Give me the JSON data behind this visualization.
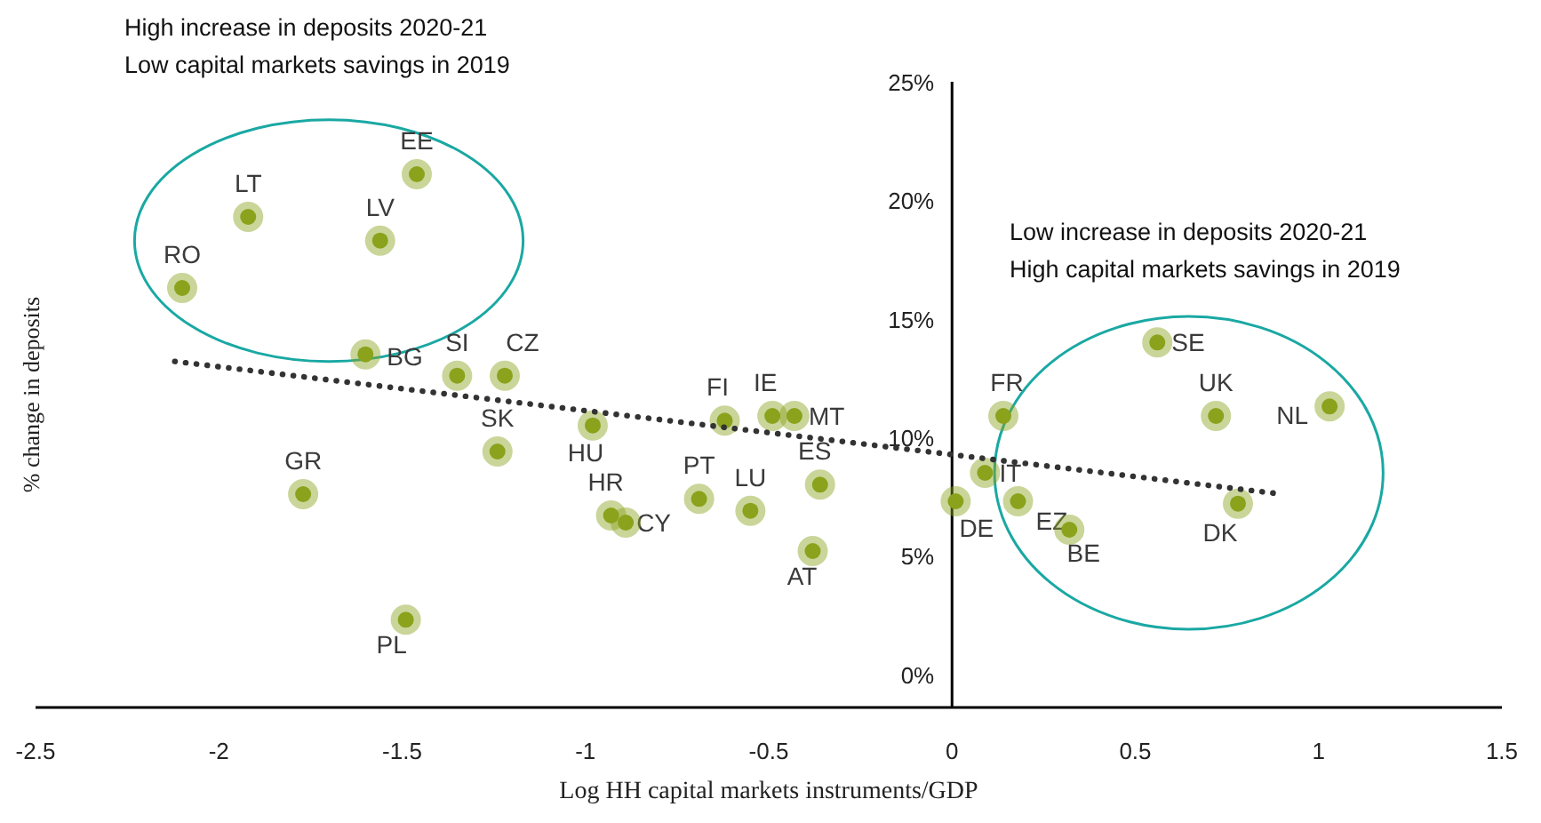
{
  "chart_data": {
    "type": "scatter",
    "xlabel": "Log HH capital markets instruments/GDP",
    "ylabel": "% change in deposits",
    "xlim": [
      -2.5,
      1.5
    ],
    "xticks": [
      -2.5,
      -2,
      -1.5,
      -1,
      -0.5,
      0,
      0.5,
      1,
      1.5
    ],
    "ylim": [
      -1.4,
      25
    ],
    "yticks": [
      {
        "value": 0,
        "label": "0%"
      },
      {
        "value": 5,
        "label": "5%"
      },
      {
        "value": 10,
        "label": "10%"
      },
      {
        "value": 15,
        "label": "15%"
      },
      {
        "value": 20,
        "label": "20%"
      },
      {
        "value": 25,
        "label": "25%"
      }
    ],
    "grid": false,
    "legend": false,
    "marker": "circle",
    "series": [
      {
        "color": "#8aa21c",
        "x": [
          -1.46,
          -1.92,
          -1.56,
          -2.1,
          -1.6,
          -1.35,
          -1.22,
          -1.24,
          -1.77,
          -1.49,
          -0.98,
          -0.62,
          -0.49,
          -0.43,
          -0.36,
          -0.55,
          -0.69,
          -0.93,
          -0.89,
          -0.38,
          0.14,
          0.09,
          0.01,
          0.18,
          0.32,
          0.56,
          0.72,
          1.03,
          0.78
        ],
        "values": [
          21.1,
          19.3,
          18.3,
          16.3,
          13.5,
          12.6,
          12.6,
          9.4,
          7.6,
          2.3,
          10.5,
          10.7,
          10.9,
          10.9,
          8.0,
          6.9,
          7.4,
          6.7,
          6.4,
          5.2,
          10.9,
          8.5,
          7.3,
          7.3,
          6.1,
          14.0,
          10.9,
          11.3,
          7.2
        ]
      },
      {
        "type": "line",
        "color": "#333333",
        "line_style": "dotted",
        "marker": "none",
        "x": [
          -2.12,
          0.9
        ],
        "values": [
          13.2,
          7.6
        ]
      }
    ],
    "annotations": [
      "High increase in deposits 2020-21\nLow capital markets savings in 2019",
      "Low increase in deposits 2020-21\nHigh capital markets savings in 2019",
      {
        "text": "EE",
        "x": -1.46,
        "y": 21.1
      },
      {
        "text": "LT",
        "x": -1.92,
        "y": 19.3
      },
      {
        "text": "LV",
        "x": -1.56,
        "y": 18.3
      },
      {
        "text": "RO",
        "x": -2.1,
        "y": 16.3
      },
      {
        "text": "BG",
        "x": -1.6,
        "y": 13.5
      },
      {
        "text": "SI",
        "x": -1.35,
        "y": 12.6
      },
      {
        "text": "CZ",
        "x": -1.22,
        "y": 12.6
      },
      {
        "text": "SK",
        "x": -1.24,
        "y": 9.4
      },
      {
        "text": "GR",
        "x": -1.77,
        "y": 7.6
      },
      {
        "text": "PL",
        "x": -1.49,
        "y": 2.3
      },
      {
        "text": "HU",
        "x": -0.98,
        "y": 10.5
      },
      {
        "text": "FI",
        "x": -0.62,
        "y": 10.7
      },
      {
        "text": "IE",
        "x": -0.49,
        "y": 10.9
      },
      {
        "text": "MT",
        "x": -0.43,
        "y": 10.9
      },
      {
        "text": "ES",
        "x": -0.36,
        "y": 8.0
      },
      {
        "text": "LU",
        "x": -0.55,
        "y": 6.9
      },
      {
        "text": "PT",
        "x": -0.69,
        "y": 7.4
      },
      {
        "text": "HR",
        "x": -0.93,
        "y": 6.7
      },
      {
        "text": "CY",
        "x": -0.89,
        "y": 6.4
      },
      {
        "text": "AT",
        "x": -0.38,
        "y": 5.2
      },
      {
        "text": "FR",
        "x": 0.14,
        "y": 10.9
      },
      {
        "text": "IT",
        "x": 0.09,
        "y": 8.5
      },
      {
        "text": "DE",
        "x": 0.01,
        "y": 7.3
      },
      {
        "text": "EZ",
        "x": 0.18,
        "y": 7.3
      },
      {
        "text": "BE",
        "x": 0.32,
        "y": 6.1
      },
      {
        "text": "SE",
        "x": 0.56,
        "y": 14.0
      },
      {
        "text": "UK",
        "x": 0.72,
        "y": 10.9
      },
      {
        "text": "NL",
        "x": 1.03,
        "y": 11.3
      },
      {
        "text": "DK",
        "x": 0.78,
        "y": 7.2
      }
    ]
  }
}
